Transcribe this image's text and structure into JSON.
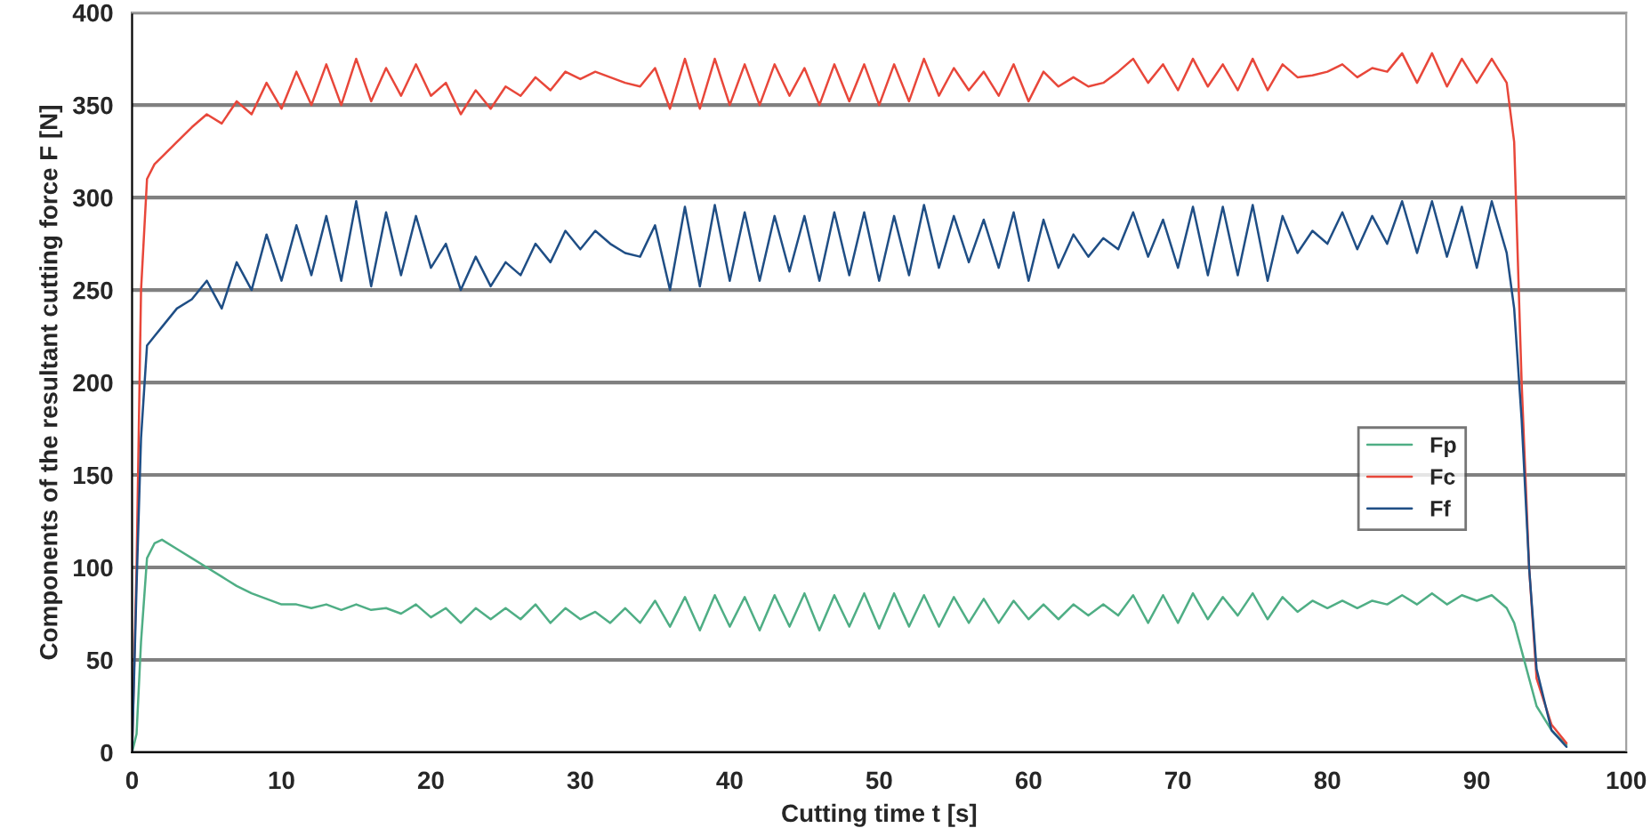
{
  "chart_data": {
    "type": "line",
    "xlabel": "Cutting time t [s]",
    "ylabel": "Components of the resultant cutting force F [N]",
    "x": [
      0,
      0.3,
      0.6,
      1,
      1.5,
      2,
      3,
      4,
      5,
      6,
      7,
      8,
      9,
      10,
      11,
      12,
      13,
      14,
      15,
      16,
      17,
      18,
      19,
      20,
      21,
      22,
      23,
      24,
      25,
      26,
      27,
      28,
      29,
      30,
      31,
      32,
      33,
      34,
      35,
      36,
      37,
      38,
      39,
      40,
      41,
      42,
      43,
      44,
      45,
      46,
      47,
      48,
      49,
      50,
      51,
      52,
      53,
      54,
      55,
      56,
      57,
      58,
      59,
      60,
      61,
      62,
      63,
      64,
      65,
      66,
      67,
      68,
      69,
      70,
      71,
      72,
      73,
      74,
      75,
      76,
      77,
      78,
      79,
      80,
      81,
      82,
      83,
      84,
      85,
      86,
      87,
      88,
      89,
      90,
      91,
      92,
      92.5,
      93,
      93.5,
      94,
      95,
      96
    ],
    "series": [
      {
        "name": "Fp",
        "color": "#4fae85",
        "values": [
          0,
          10,
          60,
          105,
          113,
          115,
          110,
          105,
          100,
          95,
          90,
          86,
          83,
          80,
          80,
          78,
          80,
          77,
          80,
          77,
          78,
          75,
          80,
          73,
          78,
          70,
          78,
          72,
          78,
          72,
          80,
          70,
          78,
          72,
          76,
          70,
          78,
          70,
          82,
          68,
          84,
          66,
          85,
          68,
          84,
          66,
          85,
          68,
          86,
          66,
          85,
          68,
          86,
          67,
          86,
          68,
          85,
          68,
          84,
          70,
          83,
          70,
          82,
          72,
          80,
          72,
          80,
          74,
          80,
          74,
          85,
          70,
          85,
          70,
          86,
          72,
          84,
          74,
          86,
          72,
          84,
          76,
          82,
          78,
          82,
          78,
          82,
          80,
          85,
          80,
          86,
          80,
          85,
          82,
          85,
          78,
          70,
          55,
          40,
          25,
          12,
          4
        ]
      },
      {
        "name": "Fc",
        "color": "#e8473a",
        "values": [
          0,
          100,
          250,
          310,
          318,
          322,
          330,
          338,
          345,
          340,
          352,
          345,
          362,
          348,
          368,
          350,
          372,
          350,
          375,
          352,
          370,
          355,
          372,
          355,
          362,
          345,
          358,
          348,
          360,
          355,
          365,
          358,
          368,
          364,
          368,
          365,
          362,
          360,
          370,
          348,
          375,
          348,
          375,
          350,
          372,
          350,
          372,
          355,
          370,
          350,
          372,
          352,
          372,
          350,
          372,
          352,
          375,
          355,
          370,
          358,
          368,
          355,
          372,
          352,
          368,
          360,
          365,
          360,
          362,
          368,
          375,
          362,
          372,
          358,
          375,
          360,
          372,
          358,
          375,
          358,
          372,
          365,
          366,
          368,
          372,
          365,
          370,
          368,
          378,
          362,
          378,
          360,
          375,
          362,
          375,
          362,
          330,
          200,
          100,
          40,
          15,
          5
        ]
      },
      {
        "name": "Ff",
        "color": "#1f4e85",
        "values": [
          0,
          90,
          170,
          220,
          225,
          230,
          240,
          245,
          255,
          240,
          265,
          250,
          280,
          255,
          285,
          258,
          290,
          255,
          298,
          252,
          292,
          258,
          290,
          262,
          275,
          250,
          268,
          252,
          265,
          258,
          275,
          265,
          282,
          272,
          282,
          275,
          270,
          268,
          285,
          250,
          295,
          252,
          296,
          255,
          292,
          255,
          290,
          260,
          290,
          255,
          292,
          258,
          292,
          255,
          290,
          258,
          296,
          262,
          290,
          265,
          288,
          262,
          292,
          255,
          288,
          262,
          280,
          268,
          278,
          272,
          292,
          268,
          288,
          262,
          295,
          258,
          295,
          258,
          296,
          255,
          290,
          270,
          282,
          275,
          292,
          272,
          290,
          275,
          298,
          270,
          298,
          268,
          295,
          262,
          298,
          270,
          240,
          180,
          100,
          45,
          12,
          3
        ]
      }
    ],
    "xlim": [
      0,
      100
    ],
    "xticks": [
      0,
      10,
      20,
      30,
      40,
      50,
      60,
      70,
      80,
      90,
      100
    ],
    "ylim": [
      0,
      400
    ],
    "yticks": [
      0,
      50,
      100,
      150,
      200,
      250,
      300,
      350,
      400
    ],
    "grid": "y",
    "legend": "right",
    "marker": "none",
    "line_style": "solid"
  }
}
